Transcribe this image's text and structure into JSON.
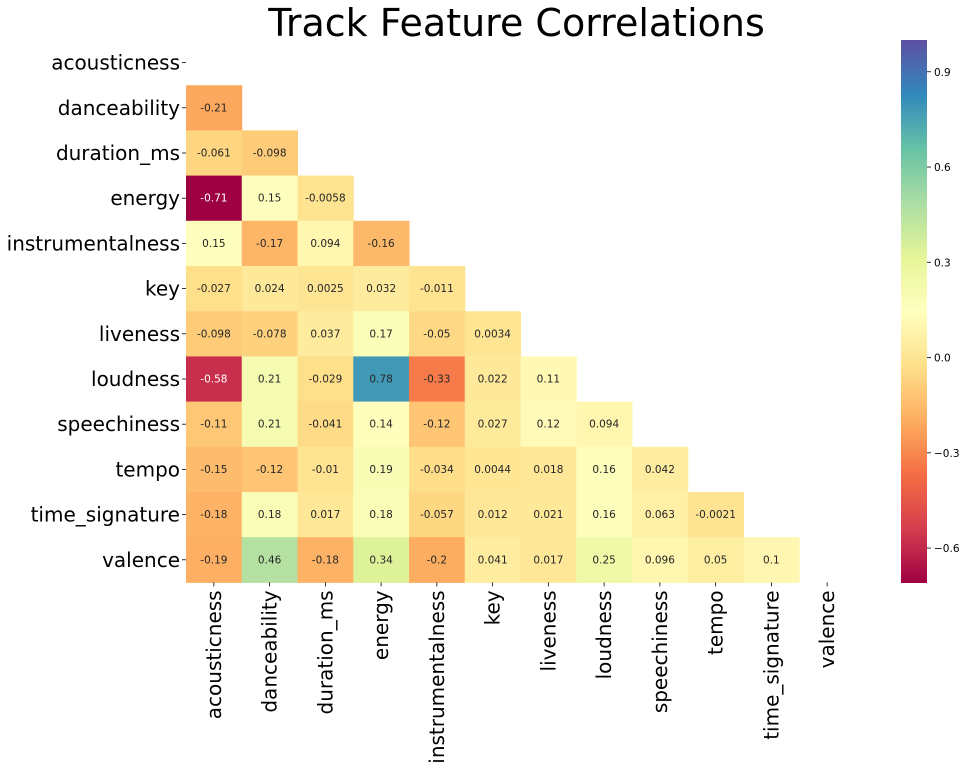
{
  "chart_data": {
    "type": "heatmap",
    "title": "Track Feature Correlations",
    "labels": [
      "acousticness",
      "danceability",
      "duration_ms",
      "energy",
      "instrumentalness",
      "key",
      "liveness",
      "loudness",
      "speechiness",
      "tempo",
      "time_signature",
      "valence"
    ],
    "mask": "upper-triangle-including-diagonal",
    "colormap": "Spectral",
    "color_range": [
      -0.71,
      1.0
    ],
    "colorbar": {
      "ticks": [
        -0.6,
        -0.3,
        0.0,
        0.3,
        0.6,
        0.9
      ],
      "tick_labels": [
        "−0.6",
        "−0.3",
        "0.0",
        "0.3",
        "0.6",
        "0.9"
      ]
    },
    "matrix": [
      [
        null,
        null,
        null,
        null,
        null,
        null,
        null,
        null,
        null,
        null,
        null,
        null
      ],
      [
        -0.21,
        null,
        null,
        null,
        null,
        null,
        null,
        null,
        null,
        null,
        null,
        null
      ],
      [
        -0.061,
        -0.098,
        null,
        null,
        null,
        null,
        null,
        null,
        null,
        null,
        null,
        null
      ],
      [
        -0.71,
        0.15,
        -0.0058,
        null,
        null,
        null,
        null,
        null,
        null,
        null,
        null,
        null
      ],
      [
        0.15,
        -0.17,
        0.094,
        -0.16,
        null,
        null,
        null,
        null,
        null,
        null,
        null,
        null
      ],
      [
        -0.027,
        0.024,
        0.0025,
        0.032,
        -0.011,
        null,
        null,
        null,
        null,
        null,
        null,
        null
      ],
      [
        -0.098,
        -0.078,
        0.037,
        0.17,
        -0.05,
        0.0034,
        null,
        null,
        null,
        null,
        null,
        null
      ],
      [
        -0.58,
        0.21,
        -0.029,
        0.78,
        -0.33,
        0.022,
        0.11,
        null,
        null,
        null,
        null,
        null
      ],
      [
        -0.11,
        0.21,
        -0.041,
        0.14,
        -0.12,
        0.027,
        0.12,
        0.094,
        null,
        null,
        null,
        null
      ],
      [
        -0.15,
        -0.12,
        -0.01,
        0.19,
        -0.034,
        0.0044,
        0.018,
        0.16,
        0.042,
        null,
        null,
        null
      ],
      [
        -0.18,
        0.18,
        0.017,
        0.18,
        -0.057,
        0.012,
        0.021,
        0.16,
        0.063,
        -0.0021,
        null,
        null
      ],
      [
        -0.19,
        0.46,
        -0.18,
        0.34,
        -0.2,
        0.041,
        0.017,
        0.25,
        0.096,
        0.05,
        0.1,
        null
      ]
    ]
  }
}
